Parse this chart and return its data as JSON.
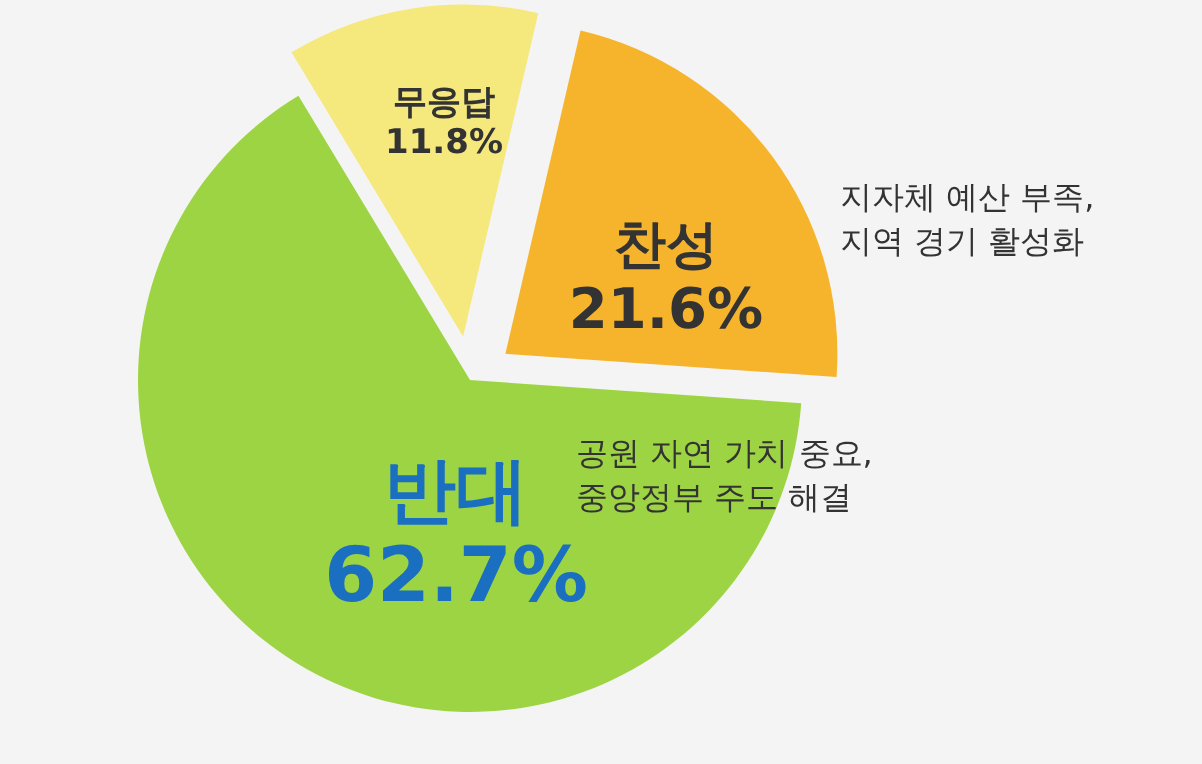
{
  "chart_data": {
    "type": "pie",
    "categories": [
      "찬성",
      "무응답",
      "반대"
    ],
    "values": [
      21.6,
      11.8,
      62.7
    ],
    "value_labels": [
      "21.6%",
      "11.8%",
      "62.7%"
    ],
    "colors": [
      "#f6b42c",
      "#f5e87c",
      "#9dd443"
    ],
    "annotations": [
      "지자체 예산 부족, 지역 경기 활성화",
      "공원 자연 가치 중요, 중앙정부 주도 해결"
    ]
  }
}
